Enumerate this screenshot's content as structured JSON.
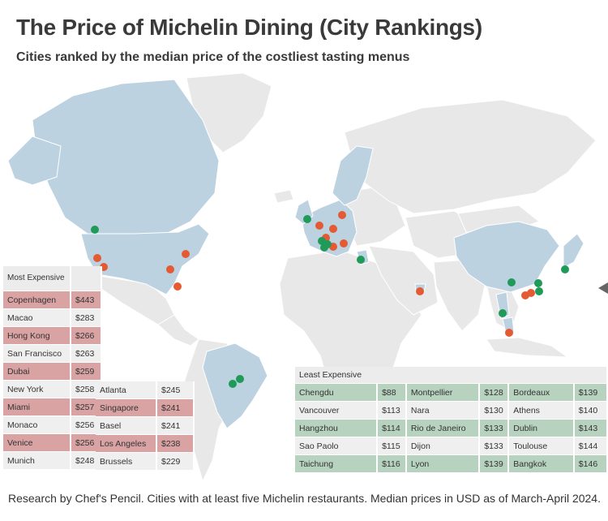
{
  "title": "The Price of Michelin Dining (City Rankings)",
  "subtitle": "Cities ranked by the median price of the costliest tasting menus",
  "footer": "Research by Chef's Pencil. Cities with at least five Michelin restaurants. Median prices in USD as of March-April 2024.",
  "colors": {
    "expensive": "#e35a33",
    "cheap": "#1f9a58",
    "highlight_land": "#bcd2e0",
    "land": "#e8e8e8",
    "red_row": "#d9a3a3",
    "green_row": "#b7d3bf"
  },
  "most_expensive": {
    "header": "Most Expensive",
    "col1": [
      {
        "city": "Copenhagen",
        "price": "$443",
        "hl": true
      },
      {
        "city": "Macao",
        "price": "$283",
        "hl": false
      },
      {
        "city": "Hong Kong",
        "price": "$266",
        "hl": true
      },
      {
        "city": "San Francisco",
        "price": "$263",
        "hl": false
      },
      {
        "city": "Dubai",
        "price": "$259",
        "hl": true
      },
      {
        "city": "New York",
        "price": "$258",
        "hl": false
      },
      {
        "city": "Miami",
        "price": "$257",
        "hl": true
      },
      {
        "city": "Monaco",
        "price": "$256",
        "hl": false
      },
      {
        "city": "Venice",
        "price": "$256",
        "hl": true
      },
      {
        "city": "Munich",
        "price": "$248",
        "hl": false
      }
    ],
    "col2": [
      {
        "city": "Atlanta",
        "price": "$245",
        "hl": false
      },
      {
        "city": "Singapore",
        "price": "$241",
        "hl": true
      },
      {
        "city": "Basel",
        "price": "$241",
        "hl": false
      },
      {
        "city": "Los Angeles",
        "price": "$238",
        "hl": true
      },
      {
        "city": "Brussels",
        "price": "$229",
        "hl": false
      }
    ]
  },
  "least_expensive": {
    "header": "Least Expensive",
    "rows": [
      {
        "hl": true,
        "cells": [
          "Chengdu",
          "$88",
          "Montpellier",
          "$128",
          "Bordeaux",
          "$139"
        ]
      },
      {
        "hl": false,
        "cells": [
          "Vancouver",
          "$113",
          "Nara",
          "$130",
          "Athens",
          "$140"
        ]
      },
      {
        "hl": true,
        "cells": [
          "Hangzhou",
          "$114",
          "Rio de Janeiro",
          "$133",
          "Dublin",
          "$143"
        ]
      },
      {
        "hl": false,
        "cells": [
          "Sao Paolo",
          "$115",
          "Dijon",
          "$133",
          "Toulouse",
          "$144"
        ]
      },
      {
        "hl": true,
        "cells": [
          "Taichung",
          "$116",
          "Lyon",
          "$139",
          "Bangkok",
          "$146"
        ]
      }
    ]
  }
}
